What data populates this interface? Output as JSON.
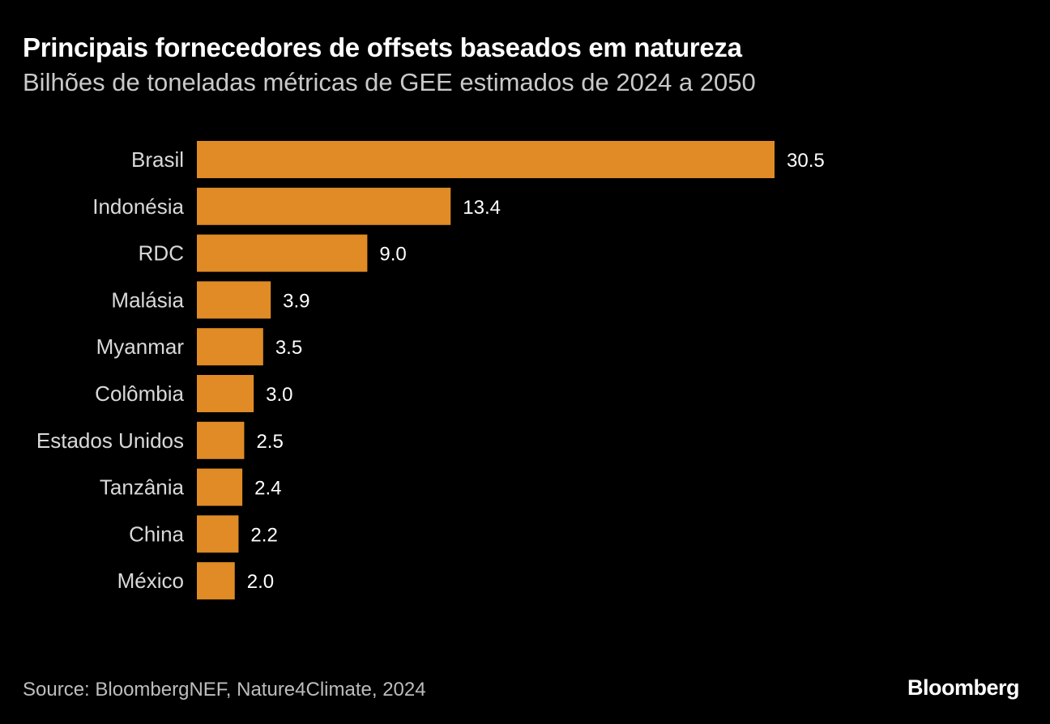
{
  "header": {
    "title": "Principais fornecedores de offsets baseados em natureza",
    "subtitle": "Bilhões de toneladas métricas de GEE estimados de 2024 a 2050"
  },
  "footer": {
    "source": "Source: BloombergNEF, Nature4Climate, 2024",
    "brand": "Bloomberg"
  },
  "colors": {
    "background": "#000000",
    "bar": "#E08B25",
    "text": "#FFFFFF"
  },
  "chart_data": {
    "type": "bar",
    "orientation": "horizontal",
    "title": "Principais fornecedores de offsets baseados em natureza",
    "subtitle": "Bilhões de toneladas métricas de GEE estimados de 2024 a 2050",
    "xlabel": "",
    "ylabel": "",
    "grid": false,
    "xlim": [
      0,
      30.5
    ],
    "categories": [
      "Brasil",
      "Indonésia",
      "RDC",
      "Malásia",
      "Myanmar",
      "Colômbia",
      "Estados Unidos",
      "Tanzânia",
      "China",
      "México"
    ],
    "values": [
      30.5,
      13.4,
      9.0,
      3.9,
      3.5,
      3.0,
      2.5,
      2.4,
      2.2,
      2.0
    ],
    "value_labels": [
      "30.5",
      "13.4",
      "9.0",
      "3.9",
      "3.5",
      "3.0",
      "2.5",
      "2.4",
      "2.2",
      "2.0"
    ]
  }
}
